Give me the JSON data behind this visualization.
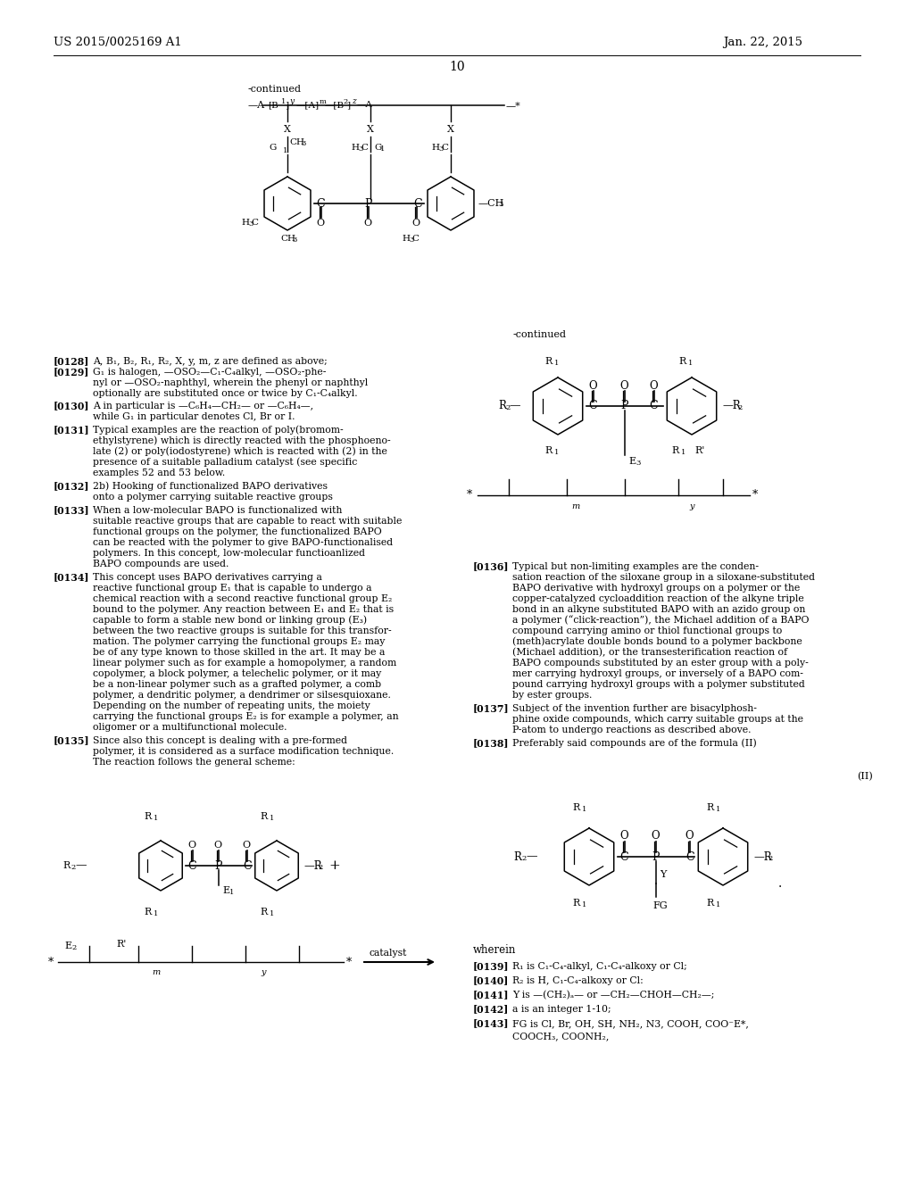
{
  "page_num": "10",
  "patent_num": "US 2015/0025169 A1",
  "patent_date": "Jan. 22, 2015",
  "background_color": "#ffffff",
  "text_color": "#000000",
  "figsize": [
    10.24,
    13.2
  ],
  "dpi": 100
}
